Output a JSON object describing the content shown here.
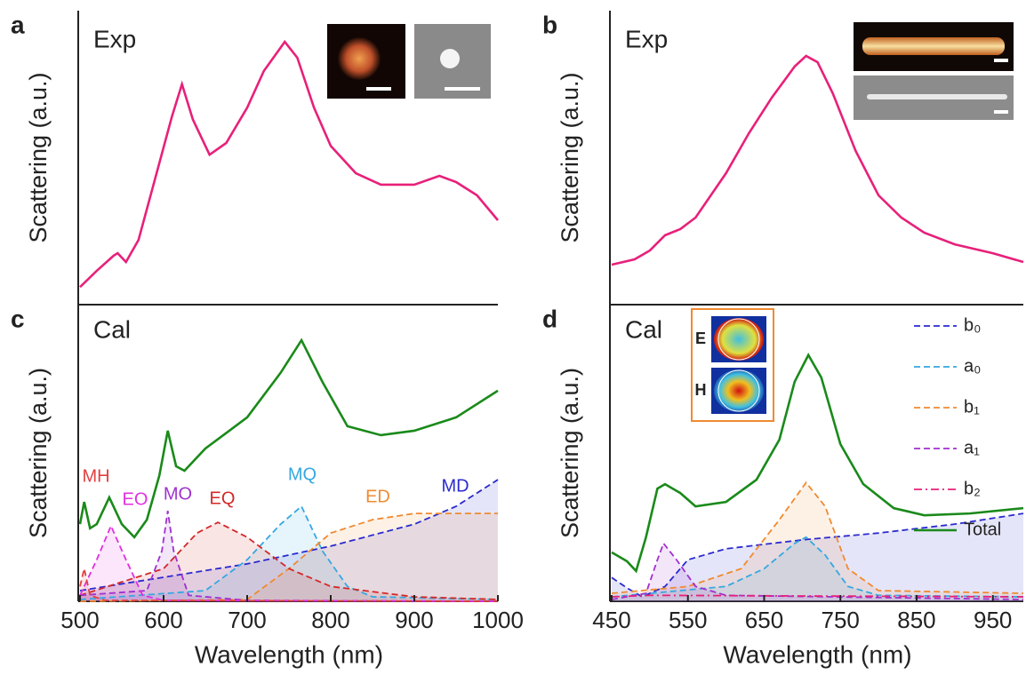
{
  "chart_data": [
    {
      "type": "line",
      "panel_label": "a",
      "annotation": "Exp",
      "ylabel": "Scattering (a.u.)",
      "xlim": [
        500,
        1000
      ],
      "ylim": [
        0,
        100
      ],
      "series": [
        {
          "color": "#e8207a",
          "style": "solid",
          "x": [
            500,
            520,
            540,
            545,
            555,
            570,
            590,
            610,
            622,
            635,
            655,
            675,
            700,
            720,
            745,
            760,
            780,
            800,
            830,
            860,
            900,
            930,
            950,
            975,
            1000
          ],
          "values": [
            6,
            11.5,
            16.6,
            17.5,
            14.5,
            22,
            43,
            64,
            75,
            63,
            51,
            55,
            67,
            79.5,
            89.4,
            84,
            67,
            54,
            44.7,
            40.8,
            40.8,
            43.8,
            41.7,
            37.2,
            28.7
          ]
        }
      ]
    },
    {
      "type": "line",
      "panel_label": "b",
      "annotation": "Exp",
      "ylabel": "Scattering (a.u.)",
      "xlim": [
        450,
        990
      ],
      "ylim": [
        0,
        100
      ],
      "series": [
        {
          "color": "#e8207a",
          "style": "solid",
          "x": [
            450,
            480,
            500,
            520,
            540,
            560,
            600,
            630,
            660,
            690,
            705,
            720,
            740,
            770,
            800,
            830,
            860,
            900,
            950,
            990
          ],
          "values": [
            13.6,
            15.4,
            18.4,
            23.6,
            25.7,
            29.6,
            44.7,
            58.3,
            70.4,
            81,
            84.6,
            82.5,
            71.9,
            52.3,
            37.2,
            29.6,
            24.5,
            20.5,
            17.5,
            14.5
          ]
        }
      ]
    },
    {
      "type": "line",
      "panel_label": "c",
      "annotation": "Cal",
      "ylabel": "Scattering (a.u.)",
      "xlabel": "Wavelength (nm)",
      "xlim": [
        500,
        1000
      ],
      "ylim": [
        0,
        100
      ],
      "xticks": [
        500,
        600,
        700,
        800,
        900,
        1000
      ],
      "series": [
        {
          "color": "#1a8a1a",
          "style": "solid",
          "x": [
            500,
            505,
            512,
            520,
            535,
            550,
            565,
            580,
            595,
            605,
            615,
            625,
            650,
            700,
            740,
            765,
            790,
            820,
            860,
            900,
            950,
            1000
          ],
          "values": [
            26,
            33.5,
            24.6,
            26,
            35,
            26,
            21.6,
            27.5,
            42.5,
            57.5,
            45.5,
            44,
            51.5,
            62,
            77,
            88,
            74,
            59,
            56,
            57.5,
            62,
            71
          ]
        },
        {
          "name": "MD",
          "color": "#2a2ad0",
          "style": "dashed",
          "fill": true,
          "x": [
            500,
            600,
            700,
            800,
            900,
            950,
            1000
          ],
          "values": [
            3.6,
            8.1,
            12.6,
            18.6,
            26,
            32,
            41
          ]
        },
        {
          "name": "MQ",
          "color": "#35a8e0",
          "style": "dashed",
          "fill": true,
          "x": [
            500,
            650,
            700,
            740,
            765,
            790,
            820,
            850,
            1000
          ],
          "values": [
            0.6,
            3.6,
            14,
            26,
            32,
            17,
            5,
            1.5,
            0.6
          ]
        },
        {
          "name": "ED",
          "color": "#f08a30",
          "style": "dashed",
          "fill": true,
          "x": [
            500,
            700,
            750,
            800,
            850,
            900,
            1000
          ],
          "values": [
            0,
            0.6,
            11,
            23,
            27.5,
            29.6,
            29.6
          ]
        },
        {
          "name": "EQ",
          "color": "#d42828",
          "style": "dashed",
          "fill": true,
          "x": [
            500,
            600,
            640,
            665,
            700,
            750,
            800,
            900,
            1000
          ],
          "values": [
            2,
            11,
            23,
            26.6,
            21.6,
            11,
            5,
            1.5,
            0.6
          ]
        },
        {
          "name": "MO",
          "color": "#a030d0",
          "style": "dashed",
          "fill": true,
          "x": [
            500,
            580,
            598,
            605,
            612,
            630,
            700,
            1000
          ],
          "values": [
            2,
            3.6,
            17,
            30.5,
            17,
            2,
            0.3,
            0
          ]
        },
        {
          "name": "EO",
          "color": "#e030e0",
          "style": "dashed",
          "fill": true,
          "x": [
            500,
            520,
            537,
            555,
            575,
            600,
            1000
          ],
          "values": [
            2,
            14,
            25.4,
            14,
            2,
            0.3,
            0
          ]
        },
        {
          "name": "MH",
          "color": "#e04040",
          "style": "dashed",
          "fill": true,
          "x": [
            500,
            505,
            512,
            530,
            1000
          ],
          "values": [
            5,
            11,
            2,
            0.3,
            0
          ]
        }
      ]
    },
    {
      "type": "line",
      "panel_label": "d",
      "annotation": "Cal",
      "ylabel": "Scattering (a.u.)",
      "xlabel": "Wavelength (nm)",
      "xlim": [
        450,
        990
      ],
      "ylim": [
        0,
        100
      ],
      "xticks": [
        450,
        550,
        650,
        750,
        850,
        950
      ],
      "inset_labels": [
        "E",
        "H"
      ],
      "legend": "upper right",
      "series": [
        {
          "name": "b₀",
          "color": "#2a2ad0",
          "style": "dashed",
          "fill": true,
          "x": [
            450,
            470,
            490,
            520,
            550,
            600,
            700,
            800,
            900,
            990
          ],
          "values": [
            8,
            4.5,
            1.5,
            5,
            14,
            17.7,
            20.7,
            23,
            26,
            29.6
          ]
        },
        {
          "name": "a₀",
          "color": "#35a8e0",
          "style": "dashed",
          "fill": true,
          "x": [
            450,
            600,
            650,
            690,
            705,
            730,
            760,
            800,
            990
          ],
          "values": [
            1.5,
            5,
            11,
            19.5,
            21.6,
            15.6,
            5,
            2,
            1.5
          ]
        },
        {
          "name": "b₁",
          "color": "#f08a30",
          "style": "dashed",
          "fill": true,
          "x": [
            450,
            550,
            620,
            670,
            705,
            730,
            760,
            800,
            990
          ],
          "values": [
            2.7,
            5,
            11,
            27.5,
            40,
            32,
            11,
            3.6,
            2.7
          ]
        },
        {
          "name": "a₁",
          "color": "#a030d0",
          "style": "dashed",
          "fill": true,
          "x": [
            450,
            495,
            510,
            518,
            535,
            560,
            600,
            990
          ],
          "values": [
            0.6,
            2.7,
            14,
            19.5,
            14,
            5,
            2,
            0.6
          ]
        },
        {
          "name": "b₂",
          "color": "#e8207a",
          "style": "dashdot",
          "x": [
            450,
            500,
            990
          ],
          "values": [
            1.5,
            2,
            1.5
          ]
        },
        {
          "name": "Total",
          "color": "#1a8a1a",
          "style": "solid",
          "x": [
            450,
            470,
            482,
            495,
            510,
            520,
            540,
            560,
            600,
            640,
            670,
            690,
            708,
            725,
            750,
            780,
            820,
            860,
            920,
            990
          ],
          "values": [
            16.5,
            13.5,
            10.2,
            21.6,
            38,
            39.5,
            36.5,
            32,
            33.5,
            41,
            54.5,
            74,
            83,
            75.4,
            53,
            39.5,
            31.4,
            29,
            29.6,
            31.4
          ]
        }
      ]
    }
  ]
}
